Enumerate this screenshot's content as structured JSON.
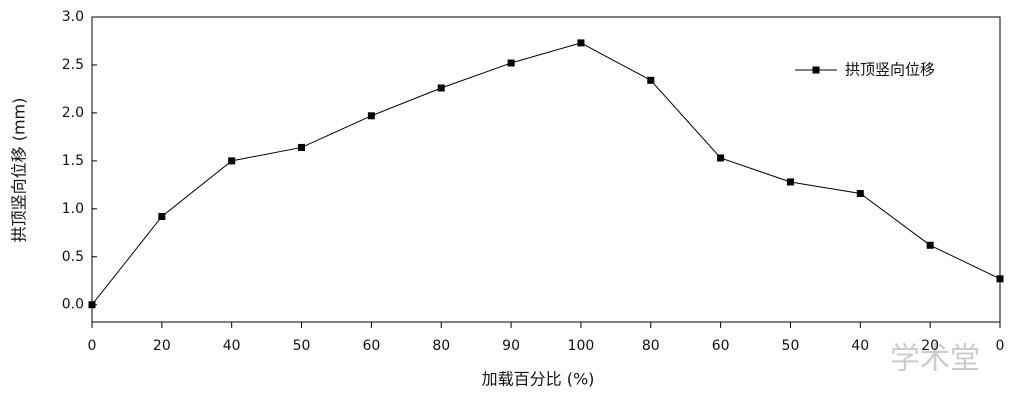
{
  "chart_data": {
    "type": "line",
    "xlabel": "加载百分比 (%)",
    "ylabel": "拱顶竖向位移 (mm)",
    "categories": [
      "0",
      "20",
      "40",
      "50",
      "60",
      "80",
      "90",
      "100",
      "80",
      "60",
      "50",
      "40",
      "20",
      "0"
    ],
    "series": [
      {
        "name": "拱顶竖向位移",
        "color": "#000000",
        "values": [
          0,
          0.92,
          1.5,
          1.64,
          1.97,
          2.26,
          2.52,
          2.73,
          2.34,
          1.53,
          1.28,
          1.16,
          0.62,
          0.27
        ]
      }
    ],
    "ylim": [
      -0.18,
      3.0
    ],
    "yticks": [
      {
        "value": 0,
        "label": "0.0"
      },
      0.5,
      {
        "value": 1,
        "label": "1.0"
      },
      1.5,
      {
        "value": 2,
        "label": "2.0"
      },
      2.5,
      {
        "value": 3,
        "label": "3.0"
      }
    ],
    "legend": "upper right",
    "watermark": "学术堂"
  }
}
